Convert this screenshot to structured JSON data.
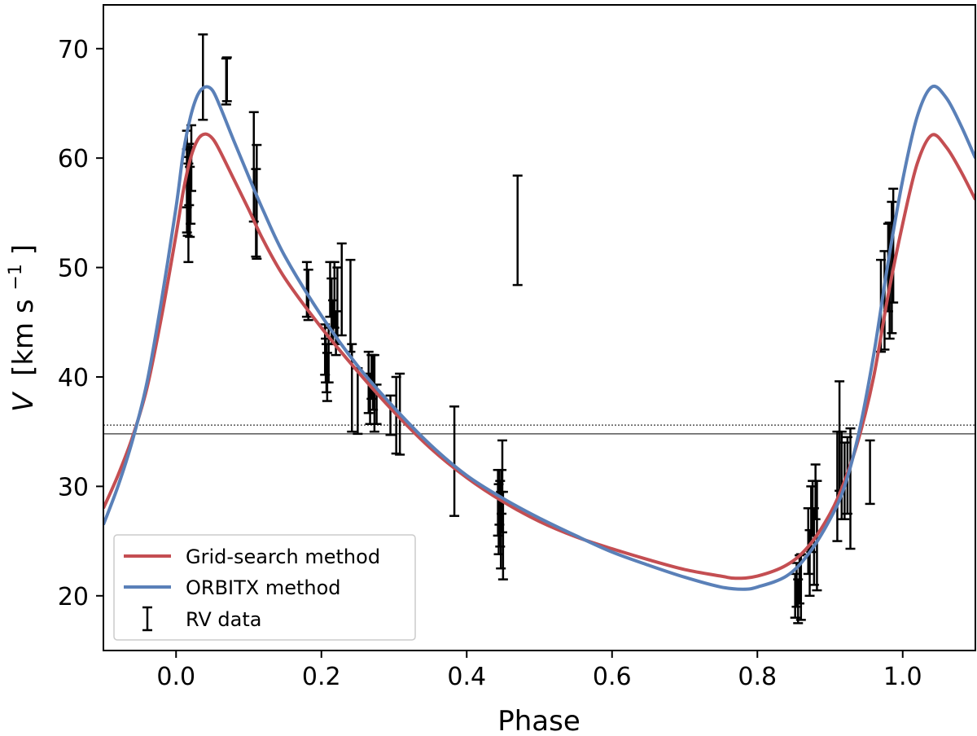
{
  "chart_data": {
    "type": "line",
    "xlabel": "Phase",
    "ylabel": {
      "symbol": "V",
      "unit_prefix": "[km s",
      "unit_exponent": "−1",
      "unit_suffix": "]"
    },
    "xlim": [
      -0.1,
      1.1
    ],
    "ylim": [
      15,
      74
    ],
    "xticks": [
      0.0,
      0.2,
      0.4,
      0.6,
      0.8,
      1.0
    ],
    "xtick_labels": [
      "0.0",
      "0.2",
      "0.4",
      "0.6",
      "0.8",
      "1.0"
    ],
    "yticks": [
      20,
      30,
      40,
      50,
      60,
      70
    ],
    "ytick_labels": [
      "20",
      "30",
      "40",
      "50",
      "60",
      "70"
    ],
    "grid": false,
    "legend_placement": "lower-left",
    "hlines": [
      {
        "y": 34.8,
        "style": "solid"
      },
      {
        "y": 35.6,
        "style": "dotted"
      }
    ],
    "series": [
      {
        "name": "Grid-search method",
        "color": "#c44e52",
        "points": [
          [
            -0.1,
            28.0
          ],
          [
            -0.08,
            31.0
          ],
          [
            -0.06,
            34.5
          ],
          [
            -0.04,
            39.0
          ],
          [
            -0.02,
            45.5
          ],
          [
            0.0,
            53.0
          ],
          [
            0.01,
            57.0
          ],
          [
            0.02,
            60.0
          ],
          [
            0.03,
            61.7
          ],
          [
            0.04,
            62.2
          ],
          [
            0.05,
            61.8
          ],
          [
            0.06,
            60.7
          ],
          [
            0.08,
            58.0
          ],
          [
            0.1,
            55.3
          ],
          [
            0.12,
            52.5
          ],
          [
            0.15,
            49.0
          ],
          [
            0.2,
            44.5
          ],
          [
            0.25,
            40.5
          ],
          [
            0.3,
            36.8
          ],
          [
            0.35,
            33.5
          ],
          [
            0.4,
            30.8
          ],
          [
            0.45,
            28.6
          ],
          [
            0.5,
            26.8
          ],
          [
            0.55,
            25.4
          ],
          [
            0.6,
            24.3
          ],
          [
            0.65,
            23.3
          ],
          [
            0.7,
            22.4
          ],
          [
            0.75,
            21.8
          ],
          [
            0.77,
            21.6
          ],
          [
            0.8,
            21.8
          ],
          [
            0.84,
            22.8
          ],
          [
            0.87,
            24.5
          ],
          [
            0.9,
            27.5
          ],
          [
            0.92,
            30.5
          ],
          [
            0.94,
            34.5
          ],
          [
            0.96,
            40.0
          ],
          [
            0.98,
            47.5
          ],
          [
            1.0,
            54.0
          ],
          [
            1.02,
            59.5
          ],
          [
            1.04,
            62.1
          ],
          [
            1.06,
            61.0
          ],
          [
            1.08,
            58.8
          ],
          [
            1.1,
            56.2
          ]
        ]
      },
      {
        "name": "ORBITX method",
        "color": "#5a80b8",
        "points": [
          [
            -0.1,
            26.5
          ],
          [
            -0.08,
            30.0
          ],
          [
            -0.06,
            34.2
          ],
          [
            -0.04,
            39.5
          ],
          [
            -0.02,
            47.0
          ],
          [
            0.0,
            55.5
          ],
          [
            0.01,
            60.5
          ],
          [
            0.02,
            63.8
          ],
          [
            0.03,
            65.8
          ],
          [
            0.04,
            66.5
          ],
          [
            0.05,
            66.2
          ],
          [
            0.06,
            64.8
          ],
          [
            0.08,
            61.5
          ],
          [
            0.1,
            58.3
          ],
          [
            0.12,
            55.2
          ],
          [
            0.15,
            51.0
          ],
          [
            0.2,
            45.6
          ],
          [
            0.25,
            41.0
          ],
          [
            0.3,
            37.2
          ],
          [
            0.35,
            33.8
          ],
          [
            0.4,
            31.0
          ],
          [
            0.45,
            28.9
          ],
          [
            0.5,
            27.1
          ],
          [
            0.55,
            25.5
          ],
          [
            0.6,
            24.0
          ],
          [
            0.65,
            22.8
          ],
          [
            0.7,
            21.7
          ],
          [
            0.75,
            20.8
          ],
          [
            0.78,
            20.6
          ],
          [
            0.8,
            20.8
          ],
          [
            0.84,
            21.8
          ],
          [
            0.87,
            23.8
          ],
          [
            0.9,
            27.0
          ],
          [
            0.92,
            30.0
          ],
          [
            0.94,
            35.0
          ],
          [
            0.96,
            42.0
          ],
          [
            0.98,
            50.5
          ],
          [
            1.0,
            58.0
          ],
          [
            1.02,
            63.8
          ],
          [
            1.04,
            66.5
          ],
          [
            1.06,
            65.5
          ],
          [
            1.08,
            63.0
          ],
          [
            1.1,
            60.0
          ]
        ]
      }
    ],
    "errorbar_series": {
      "name": "RV data",
      "color": "#000000",
      "points": [
        {
          "x": 0.015,
          "y": 59.0,
          "yerr": 3.5
        },
        {
          "x": 0.015,
          "y": 57.0,
          "yerr": 3.8
        },
        {
          "x": 0.016,
          "y": 56.5,
          "yerr": 3.6
        },
        {
          "x": 0.017,
          "y": 55.0,
          "yerr": 4.5
        },
        {
          "x": 0.018,
          "y": 58.5,
          "yerr": 2.8
        },
        {
          "x": 0.019,
          "y": 56.0,
          "yerr": 3.2
        },
        {
          "x": 0.02,
          "y": 57.5,
          "yerr": 3.5
        },
        {
          "x": 0.021,
          "y": 60.0,
          "yerr": 3.0
        },
        {
          "x": 0.037,
          "y": 67.4,
          "yerr": 3.9
        },
        {
          "x": 0.07,
          "y": 67.2,
          "yerr": 2.0
        },
        {
          "x": 0.069,
          "y": 67.0,
          "yerr": 2.1
        },
        {
          "x": 0.107,
          "y": 59.2,
          "yerr": 5.0
        },
        {
          "x": 0.11,
          "y": 55.0,
          "yerr": 4.0
        },
        {
          "x": 0.111,
          "y": 56.0,
          "yerr": 5.2
        },
        {
          "x": 0.18,
          "y": 48.0,
          "yerr": 2.5
        },
        {
          "x": 0.182,
          "y": 47.5,
          "yerr": 2.3
        },
        {
          "x": 0.205,
          "y": 42.5,
          "yerr": 2.3
        },
        {
          "x": 0.206,
          "y": 41.5,
          "yerr": 2.0
        },
        {
          "x": 0.207,
          "y": 40.8,
          "yerr": 2.2
        },
        {
          "x": 0.208,
          "y": 40.0,
          "yerr": 2.2
        },
        {
          "x": 0.21,
          "y": 42.0,
          "yerr": 2.5
        },
        {
          "x": 0.212,
          "y": 48.0,
          "yerr": 2.5
        },
        {
          "x": 0.214,
          "y": 46.0,
          "yerr": 3.0
        },
        {
          "x": 0.216,
          "y": 45.0,
          "yerr": 2.0
        },
        {
          "x": 0.218,
          "y": 47.5,
          "yerr": 3.0
        },
        {
          "x": 0.22,
          "y": 44.0,
          "yerr": 2.0
        },
        {
          "x": 0.222,
          "y": 46.5,
          "yerr": 3.5
        },
        {
          "x": 0.228,
          "y": 48.0,
          "yerr": 4.2
        },
        {
          "x": 0.24,
          "y": 46.5,
          "yerr": 4.2
        },
        {
          "x": 0.242,
          "y": 39.0,
          "yerr": 4.0
        },
        {
          "x": 0.25,
          "y": 37.8,
          "yerr": 3.0
        },
        {
          "x": 0.265,
          "y": 39.5,
          "yerr": 2.8
        },
        {
          "x": 0.267,
          "y": 38.0,
          "yerr": 2.3
        },
        {
          "x": 0.269,
          "y": 40.0,
          "yerr": 2.0
        },
        {
          "x": 0.271,
          "y": 39.5,
          "yerr": 2.5
        },
        {
          "x": 0.273,
          "y": 38.5,
          "yerr": 3.5
        },
        {
          "x": 0.276,
          "y": 37.5,
          "yerr": 1.8
        },
        {
          "x": 0.295,
          "y": 36.5,
          "yerr": 1.8
        },
        {
          "x": 0.303,
          "y": 36.5,
          "yerr": 3.5
        },
        {
          "x": 0.308,
          "y": 36.6,
          "yerr": 3.7
        },
        {
          "x": 0.383,
          "y": 32.3,
          "yerr": 5.0
        },
        {
          "x": 0.443,
          "y": 28.5,
          "yerr": 3.0
        },
        {
          "x": 0.444,
          "y": 27.0,
          "yerr": 3.2
        },
        {
          "x": 0.445,
          "y": 29.0,
          "yerr": 2.5
        },
        {
          "x": 0.446,
          "y": 27.5,
          "yerr": 3.0
        },
        {
          "x": 0.447,
          "y": 26.0,
          "yerr": 3.5
        },
        {
          "x": 0.448,
          "y": 29.5,
          "yerr": 2.0
        },
        {
          "x": 0.449,
          "y": 30.0,
          "yerr": 4.2
        },
        {
          "x": 0.45,
          "y": 25.5,
          "yerr": 4.0
        },
        {
          "x": 0.47,
          "y": 53.4,
          "yerr": 5.0
        },
        {
          "x": 0.852,
          "y": 20.0,
          "yerr": 2.0
        },
        {
          "x": 0.854,
          "y": 21.0,
          "yerr": 2.0
        },
        {
          "x": 0.856,
          "y": 19.5,
          "yerr": 2.0
        },
        {
          "x": 0.858,
          "y": 21.5,
          "yerr": 2.2
        },
        {
          "x": 0.86,
          "y": 20.8,
          "yerr": 3.0
        },
        {
          "x": 0.87,
          "y": 25.0,
          "yerr": 3.0
        },
        {
          "x": 0.872,
          "y": 23.0,
          "yerr": 3.0
        },
        {
          "x": 0.874,
          "y": 27.0,
          "yerr": 3.0
        },
        {
          "x": 0.876,
          "y": 28.0,
          "yerr": 2.5
        },
        {
          "x": 0.878,
          "y": 24.5,
          "yerr": 3.5
        },
        {
          "x": 0.88,
          "y": 29.5,
          "yerr": 2.5
        },
        {
          "x": 0.882,
          "y": 25.5,
          "yerr": 5.0
        },
        {
          "x": 0.91,
          "y": 30.0,
          "yerr": 5.0
        },
        {
          "x": 0.913,
          "y": 34.6,
          "yerr": 5.0
        },
        {
          "x": 0.916,
          "y": 31.0,
          "yerr": 4.0
        },
        {
          "x": 0.92,
          "y": 30.5,
          "yerr": 3.5
        },
        {
          "x": 0.924,
          "y": 31.0,
          "yerr": 3.5
        },
        {
          "x": 0.928,
          "y": 29.8,
          "yerr": 5.5
        },
        {
          "x": 0.955,
          "y": 31.3,
          "yerr": 2.9
        },
        {
          "x": 0.97,
          "y": 46.5,
          "yerr": 4.2
        },
        {
          "x": 0.975,
          "y": 47.0,
          "yerr": 4.5
        },
        {
          "x": 0.98,
          "y": 50.0,
          "yerr": 4.0
        },
        {
          "x": 0.982,
          "y": 48.8,
          "yerr": 5.3
        },
        {
          "x": 0.985,
          "y": 50.0,
          "yerr": 6.0
        },
        {
          "x": 0.987,
          "y": 52.0,
          "yerr": 5.2
        }
      ]
    }
  }
}
